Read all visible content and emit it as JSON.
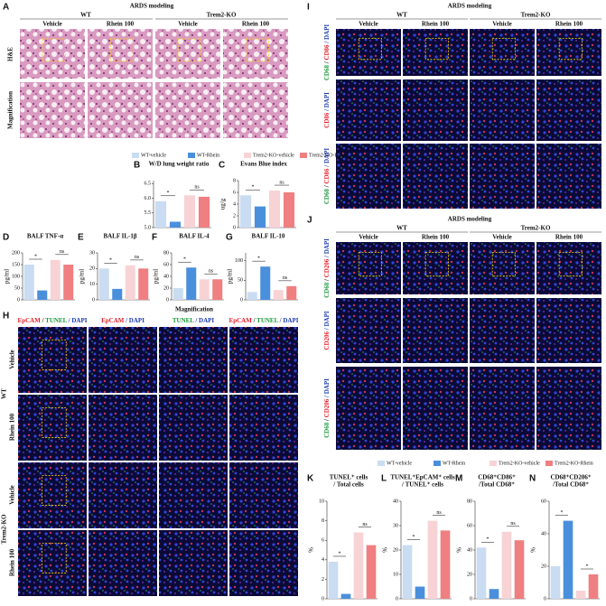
{
  "panel_a": {
    "letter": "A",
    "title": "ARDS modeling",
    "groups": [
      "WT",
      "Trem2-KO"
    ],
    "columns": [
      "Vehicle",
      "Rhein 100",
      "Vehicle",
      "Rhein 100"
    ],
    "rows": [
      "H&E",
      "Magnification"
    ]
  },
  "panel_h": {
    "letter": "H",
    "magnification": "Magnification",
    "header": [
      [
        {
          "text": "EpCAM",
          "color": "#e8202a"
        },
        {
          "text": " / ",
          "color": "#111"
        },
        {
          "text": "TUNEL",
          "color": "#1a9a3a"
        },
        {
          "text": " / DAPI",
          "color": "#1a3ab0"
        }
      ],
      [
        {
          "text": "EpCAM",
          "color": "#e8202a"
        },
        {
          "text": " / DAPI",
          "color": "#1a3ab0"
        }
      ],
      [
        {
          "text": "TUNEL",
          "color": "#1a9a3a"
        },
        {
          "text": " / DAPI",
          "color": "#1a3ab0"
        }
      ],
      [
        {
          "text": "EpCAM",
          "color": "#e8202a"
        },
        {
          "text": " / ",
          "color": "#111"
        },
        {
          "text": "TUNEL",
          "color": "#1a9a3a"
        },
        {
          "text": " / DAPI",
          "color": "#1a3ab0"
        }
      ]
    ],
    "groups": [
      "WT",
      "Trem2-KO"
    ],
    "rows": [
      "Vehicle",
      "Rhein 100",
      "Vehicle",
      "Rhein 100"
    ]
  },
  "panel_i": {
    "letter": "I",
    "title": "ARDS modeling",
    "groups": [
      "WT",
      "Trem2-KO"
    ],
    "columns": [
      "Vehicle",
      "Rhein 100",
      "Vehicle",
      "Rhein 100"
    ],
    "rows": [
      [
        {
          "text": "CD68",
          "color": "#1a9a3a"
        },
        {
          "text": " / ",
          "color": "#111"
        },
        {
          "text": "CD86",
          "color": "#e8202a"
        },
        {
          "text": " / DAPI",
          "color": "#1a3ab0"
        }
      ],
      [
        {
          "text": "CD86",
          "color": "#e8202a"
        },
        {
          "text": " / DAPI",
          "color": "#1a3ab0"
        }
      ],
      [
        {
          "text": "CD68",
          "color": "#1a9a3a"
        },
        {
          "text": " / ",
          "color": "#111"
        },
        {
          "text": "CD86",
          "color": "#e8202a"
        },
        {
          "text": " / DAPI",
          "color": "#1a3ab0"
        }
      ]
    ]
  },
  "panel_j": {
    "letter": "J",
    "title": "ARDS modeling",
    "groups": [
      "WT",
      "Trem2-KO"
    ],
    "columns": [
      "Vehicle",
      "Rhein 100",
      "Vehicle",
      "Rhein 100"
    ],
    "rows": [
      [
        {
          "text": "CD68",
          "color": "#1a9a3a"
        },
        {
          "text": " / ",
          "color": "#111"
        },
        {
          "text": "CD206",
          "color": "#e8202a"
        },
        {
          "text": " / DAPI",
          "color": "#1a3ab0"
        }
      ],
      [
        {
          "text": "CD206",
          "color": "#e8202a"
        },
        {
          "text": " / DAPI",
          "color": "#1a3ab0"
        }
      ],
      [
        {
          "text": "CD68",
          "color": "#1a9a3a"
        },
        {
          "text": " / ",
          "color": "#111"
        },
        {
          "text": "CD206",
          "color": "#e8202a"
        },
        {
          "text": " / DAPI",
          "color": "#1a3ab0"
        }
      ]
    ]
  },
  "chart_data": [
    {
      "type": "bar",
      "panel": "B",
      "title": "W/D lung weight ratio",
      "categories": [
        null
      ],
      "series": [
        {
          "name": "WT-vehicle",
          "color": "#c9dcf2",
          "values": [
            5.9
          ]
        },
        {
          "name": "WT-Rhein",
          "color": "#4a8fdc",
          "values": [
            5.2
          ]
        },
        {
          "name": "Trem2-KO-vehicle",
          "color": "#f7d3d6",
          "values": [
            6.1
          ]
        },
        {
          "name": "Trem2-KO-Rhein",
          "color": "#ef7f80",
          "values": [
            6.05
          ]
        }
      ],
      "ylim": [
        5.0,
        6.6
      ],
      "yticks": [
        {
          "value": 5,
          "label": "5.0"
        },
        {
          "value": 5.5,
          "label": "5.5"
        },
        {
          "value": 6,
          "label": "6.0"
        },
        {
          "value": 6.5,
          "label": "6.5"
        }
      ],
      "annotations": [
        "*",
        "ns"
      ]
    },
    {
      "type": "bar",
      "panel": "C",
      "title": "Evans Blue index",
      "y_label": "ug/g",
      "categories": [
        null
      ],
      "series": [
        {
          "color": "#c9dcf2",
          "values": [
            5.5
          ]
        },
        {
          "color": "#4a8fdc",
          "values": [
            3.6
          ]
        },
        {
          "color": "#f7d3d6",
          "values": [
            6.3
          ]
        },
        {
          "color": "#ef7f80",
          "values": [
            6.0
          ]
        }
      ],
      "ylim": [
        0,
        8
      ],
      "yticks": [
        0,
        2,
        4,
        6,
        8
      ],
      "annotations": [
        "*",
        "ns"
      ]
    },
    {
      "type": "bar",
      "panel": "D",
      "title": "BALF TNF-α",
      "y_label": "pg/ml",
      "categories": [
        null
      ],
      "series": [
        {
          "color": "#c9dcf2",
          "values": [
            150
          ]
        },
        {
          "color": "#4a8fdc",
          "values": [
            40
          ]
        },
        {
          "color": "#f7d3d6",
          "values": [
            170
          ]
        },
        {
          "color": "#ef7f80",
          "values": [
            150
          ]
        }
      ],
      "ylim": [
        0,
        200
      ],
      "yticks": [
        0,
        50,
        100,
        150,
        200
      ],
      "annotations": [
        "*",
        "ns"
      ]
    },
    {
      "type": "bar",
      "panel": "E",
      "title": "BALF IL-1β",
      "y_label": "pg/ml",
      "categories": [
        null
      ],
      "series": [
        {
          "color": "#c9dcf2",
          "values": [
            20
          ]
        },
        {
          "color": "#4a8fdc",
          "values": [
            7
          ]
        },
        {
          "color": "#f7d3d6",
          "values": [
            22
          ]
        },
        {
          "color": "#ef7f80",
          "values": [
            20
          ]
        }
      ],
      "ylim": [
        0,
        30
      ],
      "yticks": [
        0,
        10,
        20,
        30
      ],
      "annotations": [
        "*",
        "ns"
      ]
    },
    {
      "type": "bar",
      "panel": "F",
      "title": "BALF IL-4",
      "y_label": "pg/ml",
      "categories": [
        null
      ],
      "series": [
        {
          "color": "#c9dcf2",
          "values": [
            20
          ]
        },
        {
          "color": "#4a8fdc",
          "values": [
            55
          ]
        },
        {
          "color": "#f7d3d6",
          "values": [
            35
          ]
        },
        {
          "color": "#ef7f80",
          "values": [
            35
          ]
        }
      ],
      "ylim": [
        0,
        80
      ],
      "yticks": [
        0,
        20,
        40,
        60,
        80
      ],
      "annotations": [
        "*",
        "ns"
      ]
    },
    {
      "type": "bar",
      "panel": "G",
      "title": "BALF IL-10",
      "y_label": "pg/ml",
      "categories": [
        null
      ],
      "series": [
        {
          "color": "#c9dcf2",
          "values": [
            20
          ]
        },
        {
          "color": "#4a8fdc",
          "values": [
            85
          ]
        },
        {
          "color": "#f7d3d6",
          "values": [
            25
          ]
        },
        {
          "color": "#ef7f80",
          "values": [
            35
          ]
        }
      ],
      "ylim": [
        0,
        120
      ],
      "yticks": [
        0,
        50,
        100
      ],
      "annotations": [
        "*",
        "ns"
      ]
    },
    {
      "type": "bar",
      "panel": "K",
      "title": [
        "TUNEL⁺ cells",
        "/ Total cells"
      ],
      "y_label": "%",
      "categories": [
        null
      ],
      "series": [
        {
          "name": "WT-vehicle",
          "color": "#c9dcf2",
          "values": [
            3.8
          ]
        },
        {
          "name": "WT-Rhein",
          "color": "#4a8fdc",
          "values": [
            0.5
          ]
        },
        {
          "name": "Trem2-KO-vehicle",
          "color": "#f7d3d6",
          "values": [
            6.8
          ]
        },
        {
          "name": "Trem2-KO-Rhein",
          "color": "#ef7f80",
          "values": [
            5.5
          ]
        }
      ],
      "ylim": [
        0,
        10
      ],
      "yticks": [
        0,
        2,
        4,
        6,
        8,
        10
      ],
      "annotations": [
        "*",
        "ns"
      ]
    },
    {
      "type": "bar",
      "panel": "L",
      "title": [
        "TUNEL⁺EpCAM⁺ cells",
        "/ TUNEL⁺ cells"
      ],
      "y_label": "%",
      "categories": [
        null
      ],
      "series": [
        {
          "color": "#c9dcf2",
          "values": [
            22
          ]
        },
        {
          "color": "#4a8fdc",
          "values": [
            5
          ]
        },
        {
          "color": "#f7d3d6",
          "values": [
            32
          ]
        },
        {
          "color": "#ef7f80",
          "values": [
            28
          ]
        }
      ],
      "ylim": [
        0,
        40
      ],
      "yticks": [
        0,
        10,
        20,
        30,
        40
      ],
      "annotations": [
        "*",
        "ns"
      ]
    },
    {
      "type": "bar",
      "panel": "M",
      "title": [
        "CD68⁺CD86⁺",
        "/Total CD68⁺"
      ],
      "y_label": "%",
      "categories": [
        null
      ],
      "series": [
        {
          "color": "#c9dcf2",
          "values": [
            42
          ]
        },
        {
          "color": "#4a8fdc",
          "values": [
            8
          ]
        },
        {
          "color": "#f7d3d6",
          "values": [
            55
          ]
        },
        {
          "color": "#ef7f80",
          "values": [
            48
          ]
        }
      ],
      "ylim": [
        0,
        80
      ],
      "yticks": [
        0,
        20,
        40,
        60,
        80
      ],
      "annotations": [
        "*",
        "ns"
      ]
    },
    {
      "type": "bar",
      "panel": "N",
      "title": [
        "CD68⁺CD206⁺",
        "/Total CD68⁺"
      ],
      "y_label": "%",
      "categories": [
        null
      ],
      "series": [
        {
          "color": "#c9dcf2",
          "values": [
            20
          ]
        },
        {
          "color": "#4a8fdc",
          "values": [
            48
          ]
        },
        {
          "color": "#f7d3d6",
          "values": [
            5
          ]
        },
        {
          "color": "#ef7f80",
          "values": [
            15
          ]
        }
      ],
      "ylim": [
        0,
        60
      ],
      "yticks": [
        0,
        20,
        40,
        60
      ],
      "annotations": [
        "*",
        "*"
      ]
    }
  ]
}
